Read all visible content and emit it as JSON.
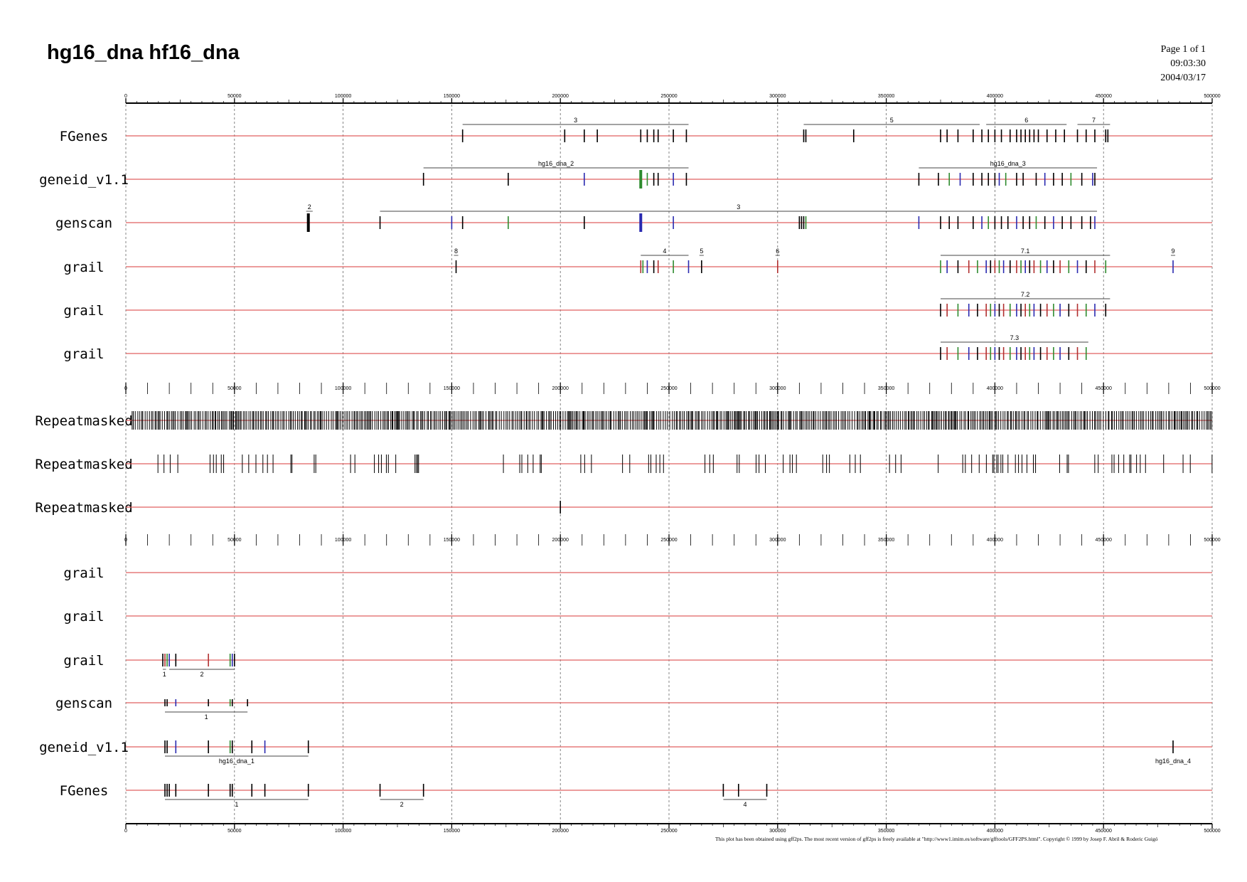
{
  "header": {
    "title": "hg16_dna hf16_dna",
    "page": "Page 1 of 1",
    "time": "09:03:30",
    "date": "2004/03/17"
  },
  "axis": {
    "min": 0,
    "max": 500000,
    "major_step": 50000,
    "tick_labels": [
      "0",
      "50000",
      "100000",
      "150000",
      "200000",
      "250000",
      "300000",
      "350000",
      "400000",
      "450000",
      "500000"
    ]
  },
  "colors": {
    "track_line": "#e06060",
    "grid": "#666666",
    "exon": "#000000",
    "exon_green": "#2e8b2e",
    "exon_blue": "#2a2ab0",
    "exon_red": "#b03030",
    "bracket": "#444444"
  },
  "tracks": [
    {
      "name": "FGenes",
      "section": 1,
      "exons": [
        155000,
        202000,
        211000,
        217000,
        237000,
        240000,
        243000,
        245000,
        252000,
        258000,
        312000,
        313000,
        335000,
        375000,
        378000,
        383000,
        390000,
        394000,
        397000,
        400000,
        403000,
        407000,
        410000,
        412000,
        414000,
        416000,
        418000,
        420000,
        424000,
        428000,
        432000,
        438000,
        442000,
        446000,
        451000,
        452000
      ],
      "groups": [
        {
          "label": "3",
          "start": 155000,
          "end": 259000
        },
        {
          "label": "5",
          "start": 312000,
          "end": 393000
        },
        {
          "label": "6",
          "start": 396000,
          "end": 433000
        },
        {
          "label": "7",
          "start": 438000,
          "end": 453000
        }
      ],
      "group_pos": "above"
    },
    {
      "name": "geneid_v1.1",
      "section": 1,
      "exons": [
        137000,
        176000,
        211000,
        237000,
        240000,
        243000,
        245000,
        252000,
        258000,
        365000,
        374000,
        379000,
        384000,
        390000,
        394000,
        397000,
        400000,
        402000,
        405000,
        410000,
        413000,
        419000,
        423000,
        427000,
        431000,
        435000,
        440000,
        445000,
        446000
      ],
      "groups": [
        {
          "label": "hg16_dna_2",
          "start": 137000,
          "end": 259000
        },
        {
          "label": "hg16_dna_3",
          "start": 365000,
          "end": 447000
        }
      ],
      "group_pos": "above"
    },
    {
      "name": "genscan",
      "section": 1,
      "exons": [
        84000,
        117000,
        150000,
        155000,
        176000,
        211000,
        237000,
        252000,
        310000,
        311000,
        312000,
        313000,
        365000,
        375000,
        379000,
        383000,
        390000,
        394000,
        397000,
        400000,
        403000,
        406000,
        410000,
        413000,
        416000,
        419000,
        423000,
        427000,
        431000,
        435000,
        440000,
        444000,
        446000
      ],
      "groups": [
        {
          "label": "2",
          "start": 83000,
          "end": 86000
        },
        {
          "label": "3",
          "start": 117000,
          "end": 447000
        }
      ],
      "group_pos": "above"
    },
    {
      "name": "grail",
      "section": 1,
      "exons": [
        152000,
        237000,
        238000,
        240000,
        243000,
        245000,
        252000,
        259000,
        265000,
        300000,
        375000,
        378000,
        383000,
        388000,
        392000,
        396000,
        398000,
        400000,
        402000,
        404000,
        407000,
        410000,
        412000,
        414000,
        416000,
        418000,
        421000,
        424000,
        427000,
        430000,
        434000,
        438000,
        442000,
        446000,
        451000,
        482000
      ],
      "groups": [
        {
          "label": "8",
          "start": 151000,
          "end": 153000
        },
        {
          "label": "4",
          "start": 237000,
          "end": 259000
        },
        {
          "label": "5",
          "start": 264000,
          "end": 266000
        },
        {
          "label": "6",
          "start": 299000,
          "end": 301000
        },
        {
          "label": "7.1",
          "start": 375000,
          "end": 453000
        },
        {
          "label": "9",
          "start": 481000,
          "end": 483000
        }
      ],
      "group_pos": "above"
    },
    {
      "name": "grail",
      "section": 1,
      "exons": [
        375000,
        378000,
        383000,
        388000,
        392000,
        396000,
        398000,
        400000,
        402000,
        404000,
        407000,
        410000,
        412000,
        414000,
        416000,
        418000,
        421000,
        424000,
        427000,
        430000,
        434000,
        438000,
        442000,
        446000,
        451000
      ],
      "groups": [
        {
          "label": "7.2",
          "start": 375000,
          "end": 453000
        }
      ],
      "group_pos": "above"
    },
    {
      "name": "grail",
      "section": 1,
      "exons": [
        375000,
        378000,
        383000,
        388000,
        392000,
        396000,
        398000,
        400000,
        402000,
        404000,
        407000,
        410000,
        412000,
        414000,
        416000,
        418000,
        421000,
        424000,
        427000,
        430000,
        434000,
        438000,
        442000
      ],
      "groups": [
        {
          "label": "7.3",
          "start": 375000,
          "end": 443000
        }
      ],
      "group_pos": "above"
    },
    {
      "name": "Repeatmasked",
      "section": 2,
      "repeat_density": "dense",
      "exons": [],
      "groups": []
    },
    {
      "name": "Repeatmasked",
      "section": 2,
      "repeat_density": "medium",
      "exons": [],
      "groups": []
    },
    {
      "name": "Repeatmasked",
      "section": 2,
      "exons": [
        200000
      ],
      "groups": []
    },
    {
      "name": "grail",
      "section": 3,
      "exons": [],
      "groups": []
    },
    {
      "name": "grail",
      "section": 3,
      "exons": [],
      "groups": []
    },
    {
      "name": "grail",
      "section": 3,
      "exons": [
        17000,
        18000,
        19000,
        20000,
        23000,
        38000,
        48000,
        49000,
        50000
      ],
      "groups": [
        {
          "label": "1",
          "start": 17000,
          "end": 18500
        },
        {
          "label": "2",
          "start": 20000,
          "end": 50000
        }
      ],
      "group_pos": "below"
    },
    {
      "name": "genscan",
      "section": 3,
      "exons": [
        18000,
        19000,
        23000,
        38000,
        48000,
        49000,
        56000
      ],
      "groups": [
        {
          "label": "1",
          "start": 18000,
          "end": 56000
        }
      ],
      "group_pos": "below"
    },
    {
      "name": "geneid_v1.1",
      "section": 3,
      "exons": [
        18000,
        19000,
        23000,
        38000,
        48000,
        49000,
        58000,
        64000,
        84000,
        482000
      ],
      "groups": [
        {
          "label": "hg16_dna_1",
          "start": 18000,
          "end": 84000
        },
        {
          "label": "hg16_dna_4",
          "start": 482000,
          "end": 482000
        }
      ],
      "group_pos": "below"
    },
    {
      "name": "FGenes",
      "section": 3,
      "exons": [
        18000,
        19000,
        20000,
        23000,
        38000,
        48000,
        49000,
        58000,
        64000,
        84000,
        117000,
        137000,
        275000,
        282000,
        295000
      ],
      "groups": [
        {
          "label": "1",
          "start": 18000,
          "end": 84000
        },
        {
          "label": "2",
          "start": 117000,
          "end": 137000
        },
        {
          "label": "4",
          "start": 275000,
          "end": 295000
        }
      ],
      "group_pos": "below"
    }
  ],
  "footer": "This plot has been obtained using gff2ps. The most recent version of gff2ps is freely available at \"http://www1.imim.es/software/gfftools/GFF2PS.html\". Copyright © 1999 by Josep F. Abril & Roderic Guigó"
}
